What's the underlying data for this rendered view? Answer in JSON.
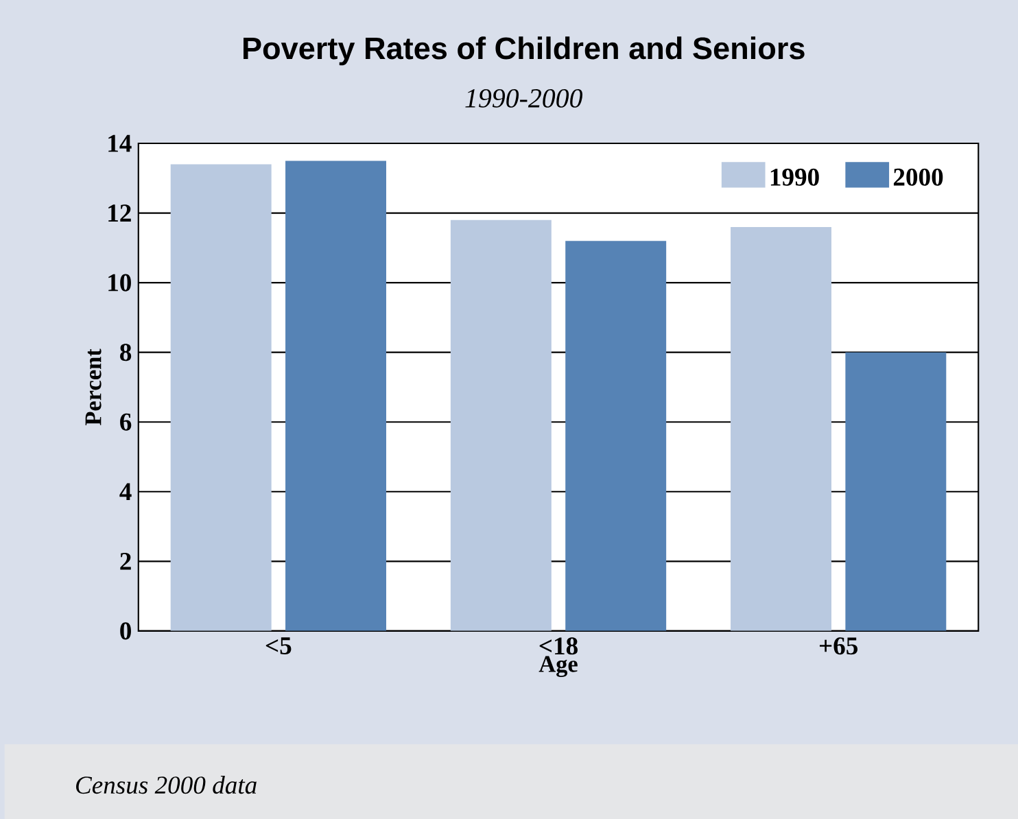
{
  "chart_data": {
    "type": "bar",
    "title": "Poverty Rates of Children and Seniors",
    "subtitle": "1990-2000",
    "xlabel": "Age",
    "ylabel": "Percent",
    "annotations": [
      "Census 2000 data"
    ],
    "categories": [
      "<5",
      "<18",
      "+65"
    ],
    "series": [
      {
        "name": "1990",
        "color": "#b9c9e0",
        "values": [
          13.4,
          11.8,
          11.6
        ]
      },
      {
        "name": "2000",
        "color": "#5683b5",
        "values": [
          13.5,
          11.2,
          8.0
        ]
      }
    ],
    "ylim": [
      0,
      14
    ],
    "yticks": [
      0,
      2,
      4,
      6,
      8,
      10,
      12,
      14
    ],
    "grid": "y",
    "legend": "top right"
  }
}
